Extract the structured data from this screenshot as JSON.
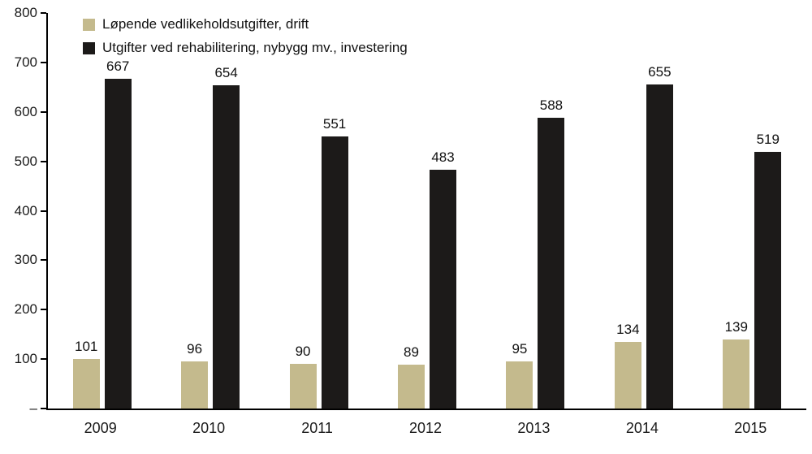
{
  "chart_data": {
    "type": "bar",
    "categories": [
      "2009",
      "2010",
      "2011",
      "2012",
      "2013",
      "2014",
      "2015"
    ],
    "series": [
      {
        "name": "Løpende vedlikeholdsutgifter, drift",
        "color": "#c4ba8d",
        "values": [
          101,
          96,
          90,
          89,
          95,
          134,
          139
        ]
      },
      {
        "name": "Utgifter ved rehabilitering, nybygg mv., investering",
        "color": "#1c1a19",
        "values": [
          667,
          654,
          551,
          483,
          588,
          655,
          519
        ]
      }
    ],
    "title": "",
    "xlabel": "",
    "ylabel": "",
    "ylim": [
      0,
      800
    ],
    "ytick_step": 100,
    "ytick_labels": [
      "–",
      "100",
      "200",
      "300",
      "400",
      "500",
      "600",
      "700",
      "800"
    ],
    "grid": false,
    "legend_position": "top-left"
  }
}
